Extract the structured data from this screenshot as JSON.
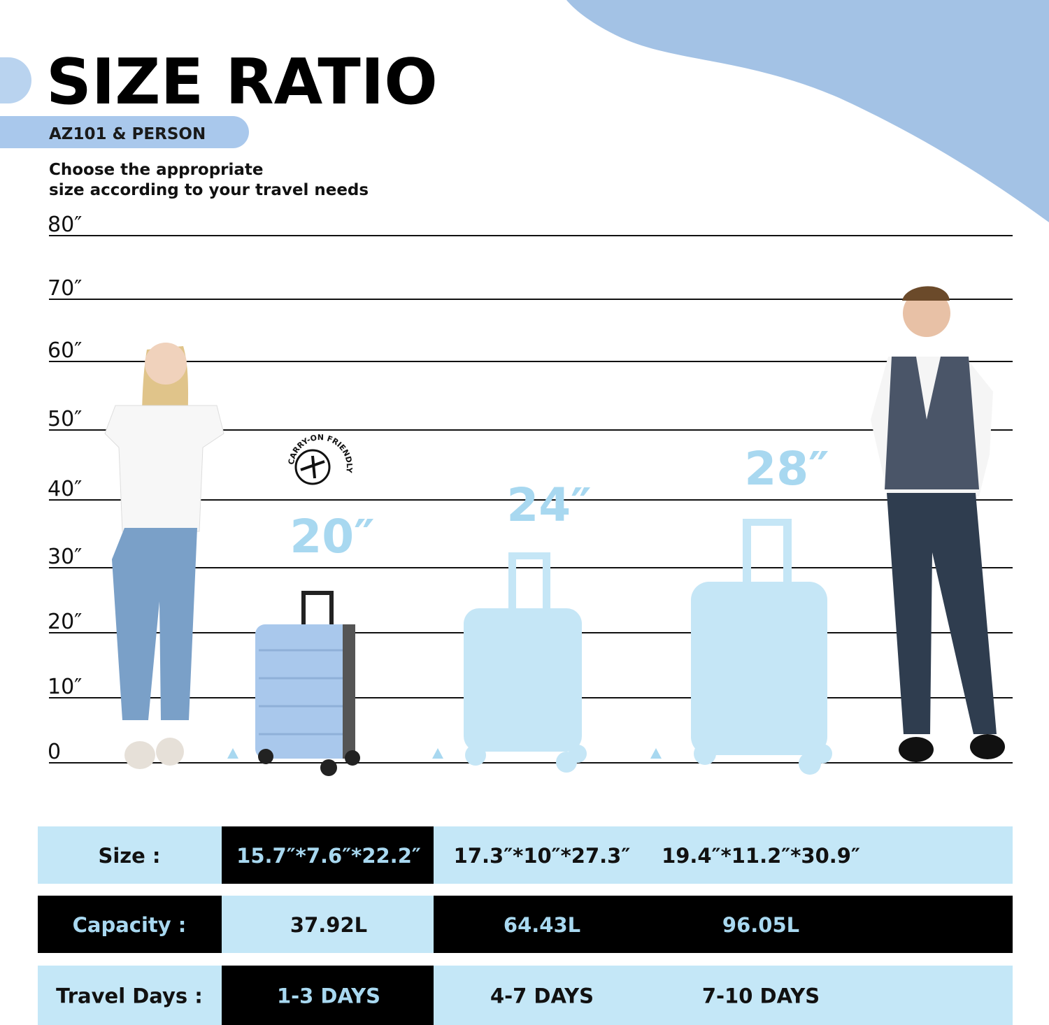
{
  "header": {
    "title": "SIZE RATIO",
    "tag": "AZ101 & PERSON",
    "subtitle": [
      "Choose the appropriate",
      "size according to your travel needs"
    ]
  },
  "scale": {
    "labels": [
      "80″",
      "70″",
      "60″",
      "50″",
      "40″",
      "30″",
      "20″",
      "10″",
      "0"
    ]
  },
  "badge": "CARRY-ON FRIENDLY",
  "suitcases": [
    "20″",
    "24″",
    "28″"
  ],
  "table": {
    "rows": [
      [
        "Size :",
        "15.7″*7.6″*22.2″",
        "17.3″*10″*27.3″",
        "19.4″*11.2″*30.9″"
      ],
      [
        "Capacity :",
        "37.92L",
        "64.43L",
        "96.05L"
      ],
      [
        "Travel Days :",
        "1-3 DAYS",
        "4-7 DAYS",
        "7-10 DAYS"
      ]
    ]
  }
}
